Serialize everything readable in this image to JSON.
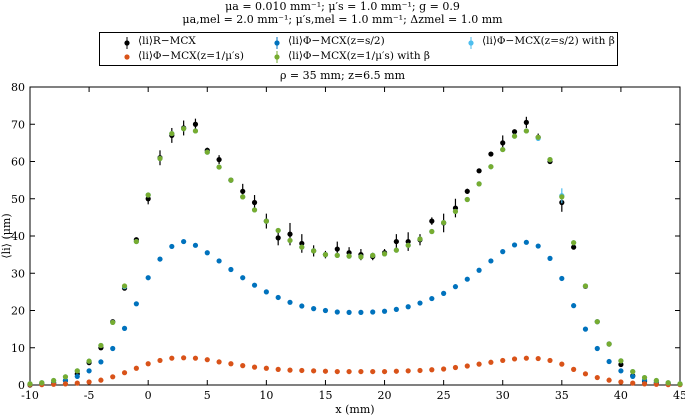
{
  "title": {
    "line1": "μa = 0.010 mm⁻¹; μ′s = 1.0 mm⁻¹; g = 0.9",
    "line2": "μa,mel = 2.0 mm⁻¹; μ′s,mel = 1.0 mm⁻¹; Δzmel = 1.0 mm",
    "line3": "ρ = 35 mm; z=6.5 mm"
  },
  "legend": {
    "items": [
      {
        "label": "⟨li⟩R−MCX",
        "color": "#000000"
      },
      {
        "label": "⟨li⟩Φ−MCX(z=1/μ′s)",
        "color": "#D95319"
      },
      {
        "label": "⟨li⟩Φ−MCX(z=s/2)",
        "color": "#0072BD"
      },
      {
        "label": "⟨li⟩Φ−MCX(z=1/μ′s) with β",
        "color": "#77AC30"
      },
      {
        "label": "⟨li⟩Φ−MCX(z=s/2) with β",
        "color": "#4DBEEE"
      }
    ]
  },
  "chart_data": {
    "type": "scatter",
    "xlabel": "x (mm)",
    "ylabel": "⟨li⟩ (μm)",
    "xlim": [
      -10,
      45
    ],
    "ylim": [
      0,
      80
    ],
    "xticks": [
      -10,
      -5,
      0,
      5,
      10,
      15,
      20,
      25,
      30,
      35,
      40,
      45
    ],
    "yticks": [
      0,
      10,
      20,
      30,
      40,
      50,
      60,
      70,
      80
    ],
    "grid": false,
    "series": [
      {
        "name": "R-MCX",
        "color": "#000000",
        "x": [
          -10,
          -9,
          -8,
          -7,
          -6,
          -5,
          -4,
          -3,
          -2,
          -1,
          0,
          1,
          2,
          3,
          4,
          5,
          6,
          7,
          8,
          9,
          10,
          11,
          12,
          13,
          14,
          15,
          16,
          17,
          18,
          19,
          20,
          21,
          22,
          23,
          24,
          25,
          26,
          27,
          28,
          29,
          30,
          31,
          32,
          33,
          34,
          35,
          36,
          37,
          38,
          39,
          40,
          41,
          42,
          43,
          44,
          45
        ],
        "y": [
          0,
          0.3,
          0.5,
          1.2,
          3,
          6,
          10,
          17,
          26,
          39,
          50,
          61,
          67,
          69,
          70,
          63,
          60.5,
          55,
          52,
          49,
          44,
          39.5,
          40.5,
          38,
          36,
          35,
          36.5,
          35.5,
          35,
          34.5,
          35.5,
          38.5,
          38.5,
          39,
          44,
          43.5,
          47.5,
          52,
          57.5,
          62,
          65,
          68,
          70.5,
          66.5,
          60,
          49,
          37,
          26.5,
          17,
          11,
          5.5,
          2.5,
          1,
          0.5,
          0.3,
          0.2
        ],
        "err": [
          0,
          0,
          0,
          0,
          0,
          0,
          0,
          0,
          0,
          0.5,
          1.5,
          2,
          2,
          2,
          1.5,
          0.7,
          1.2,
          0.5,
          2,
          2,
          2,
          2,
          3,
          2.5,
          1.5,
          1,
          2,
          1.5,
          1.5,
          1,
          1,
          2,
          2.5,
          1.5,
          1,
          2.5,
          2.5,
          0.7,
          0.5,
          0.5,
          2,
          0.5,
          1.5,
          1,
          0.5,
          2.5,
          0.5,
          0.5,
          0.5,
          0.7,
          0,
          0,
          0,
          0,
          0,
          0
        ]
      },
      {
        "name": "Φ-MCX(z=1/μ′s)",
        "color": "#D95319",
        "x": [
          -10,
          -9,
          -8,
          -7,
          -6,
          -5,
          -4,
          -3,
          -2,
          -1,
          0,
          1,
          2,
          3,
          4,
          5,
          6,
          7,
          8,
          9,
          10,
          11,
          12,
          13,
          14,
          15,
          16,
          17,
          18,
          19,
          20,
          21,
          22,
          23,
          24,
          25,
          26,
          27,
          28,
          29,
          30,
          31,
          32,
          33,
          34,
          35,
          36,
          37,
          38,
          39,
          40,
          41,
          42,
          43,
          44,
          45
        ],
        "y": [
          0.1,
          0.1,
          0.2,
          0.3,
          0.5,
          0.8,
          1.3,
          2.2,
          3.3,
          4.5,
          5.7,
          6.6,
          7.2,
          7.3,
          7.2,
          6.8,
          6.2,
          5.7,
          5.2,
          4.8,
          4.5,
          4.2,
          4.0,
          3.9,
          3.8,
          3.7,
          3.6,
          3.6,
          3.6,
          3.6,
          3.6,
          3.7,
          3.8,
          3.9,
          4.1,
          4.3,
          4.7,
          5.1,
          5.6,
          6.1,
          6.6,
          7.0,
          7.2,
          7.1,
          6.6,
          5.6,
          4.2,
          3.0,
          2.0,
          1.3,
          0.8,
          0.5,
          0.3,
          0.2,
          0.1,
          0.1
        ]
      },
      {
        "name": "Φ-MCX(z=s/2)",
        "color": "#0072BD",
        "x": [
          -10,
          -9,
          -8,
          -7,
          -6,
          -5,
          -4,
          -3,
          -2,
          -1,
          0,
          1,
          2,
          3,
          4,
          5,
          6,
          7,
          8,
          9,
          10,
          11,
          12,
          13,
          14,
          15,
          16,
          17,
          18,
          19,
          20,
          21,
          22,
          23,
          24,
          25,
          26,
          27,
          28,
          29,
          30,
          31,
          32,
          33,
          34,
          35,
          36,
          37,
          38,
          39,
          40,
          41,
          42,
          43,
          44,
          45
        ],
        "y": [
          0.2,
          0.3,
          0.6,
          1.2,
          2.3,
          3.8,
          6.2,
          9.8,
          15.2,
          21.8,
          28.8,
          33.8,
          37.2,
          38.5,
          37.5,
          35.5,
          33.3,
          31,
          28.8,
          26.8,
          25,
          23.5,
          22.2,
          21.2,
          20.5,
          20,
          19.6,
          19.5,
          19.5,
          19.6,
          19.8,
          20.3,
          21,
          22,
          23.2,
          24.6,
          26.4,
          28.4,
          30.8,
          33.3,
          35.8,
          37.6,
          38.3,
          37.3,
          34,
          28.6,
          21.3,
          15,
          9.8,
          6.3,
          3.8,
          2.3,
          1.3,
          0.7,
          0.4,
          0.2
        ]
      },
      {
        "name": "Φ-MCX(z=1/μ′s) with β",
        "color": "#77AC30",
        "x": [
          -10,
          -9,
          -8,
          -7,
          -6,
          -5,
          -4,
          -3,
          -2,
          -1,
          0,
          1,
          2,
          3,
          4,
          5,
          6,
          7,
          8,
          9,
          10,
          11,
          12,
          13,
          14,
          15,
          16,
          17,
          18,
          19,
          20,
          21,
          22,
          23,
          24,
          25,
          26,
          27,
          28,
          29,
          30,
          31,
          32,
          33,
          34,
          35,
          36,
          37,
          38,
          39,
          40,
          41,
          42,
          43,
          44,
          45
        ],
        "y": [
          0.3,
          0.6,
          1.2,
          2.2,
          3.8,
          6.4,
          10.6,
          16.8,
          26.6,
          38.5,
          51,
          60.8,
          67.5,
          68.8,
          68.2,
          62.5,
          58.5,
          55,
          50.5,
          47,
          44,
          41.5,
          38.8,
          37,
          36,
          35,
          34.8,
          34.6,
          34.4,
          34.8,
          35.2,
          36.2,
          37.5,
          39.2,
          41.2,
          43.6,
          46.6,
          49.8,
          54,
          58.6,
          63.2,
          66.8,
          68.2,
          66.5,
          60.5,
          50.5,
          38.2,
          26.6,
          17,
          11,
          6.5,
          3.6,
          2,
          1.2,
          0.6,
          0.3
        ]
      },
      {
        "name": "Φ-MCX(z=s/2) with β",
        "color": "#4DBEEE",
        "x": [
          -10,
          -9,
          -8,
          -7,
          -6,
          -5,
          -4,
          -3,
          -2,
          -1,
          0,
          1,
          2,
          3,
          4,
          5,
          6,
          7,
          8,
          9,
          10,
          11,
          12,
          13,
          14,
          15,
          16,
          17,
          18,
          19,
          20,
          21,
          22,
          23,
          24,
          25,
          26,
          27,
          28,
          29,
          30,
          31,
          32,
          33,
          34,
          35,
          36,
          37,
          38,
          39,
          40,
          41,
          42,
          43,
          44,
          45
        ],
        "y": [
          0.3,
          0.6,
          1.2,
          2.2,
          3.8,
          6.4,
          10.6,
          16.8,
          26.4,
          38.5,
          51,
          60.8,
          67.5,
          68.8,
          68.2,
          62.5,
          58.5,
          55,
          50.5,
          47,
          44,
          41.5,
          38.8,
          37,
          36,
          35,
          34.8,
          34.6,
          34.4,
          34.8,
          35.2,
          36.2,
          37.5,
          39.2,
          41.2,
          43.6,
          46.6,
          49.8,
          54,
          58.6,
          63.2,
          66.8,
          68.2,
          66.2,
          60.5,
          50.8,
          38.2,
          26.6,
          17,
          11,
          6.5,
          3.6,
          2,
          1.2,
          0.6,
          0.3
        ],
        "err": [
          0,
          0,
          0,
          0,
          0,
          0,
          0,
          0,
          0,
          0,
          0,
          0,
          0,
          0,
          0,
          0,
          0,
          0,
          0,
          0,
          0,
          0,
          0,
          0,
          0,
          0,
          0,
          0,
          0,
          0,
          0,
          0,
          0,
          0,
          0,
          0,
          0,
          0,
          0,
          0,
          0,
          0,
          0,
          0,
          0,
          2,
          0,
          0,
          0,
          0,
          0,
          0,
          0,
          0,
          0,
          0
        ]
      }
    ]
  }
}
